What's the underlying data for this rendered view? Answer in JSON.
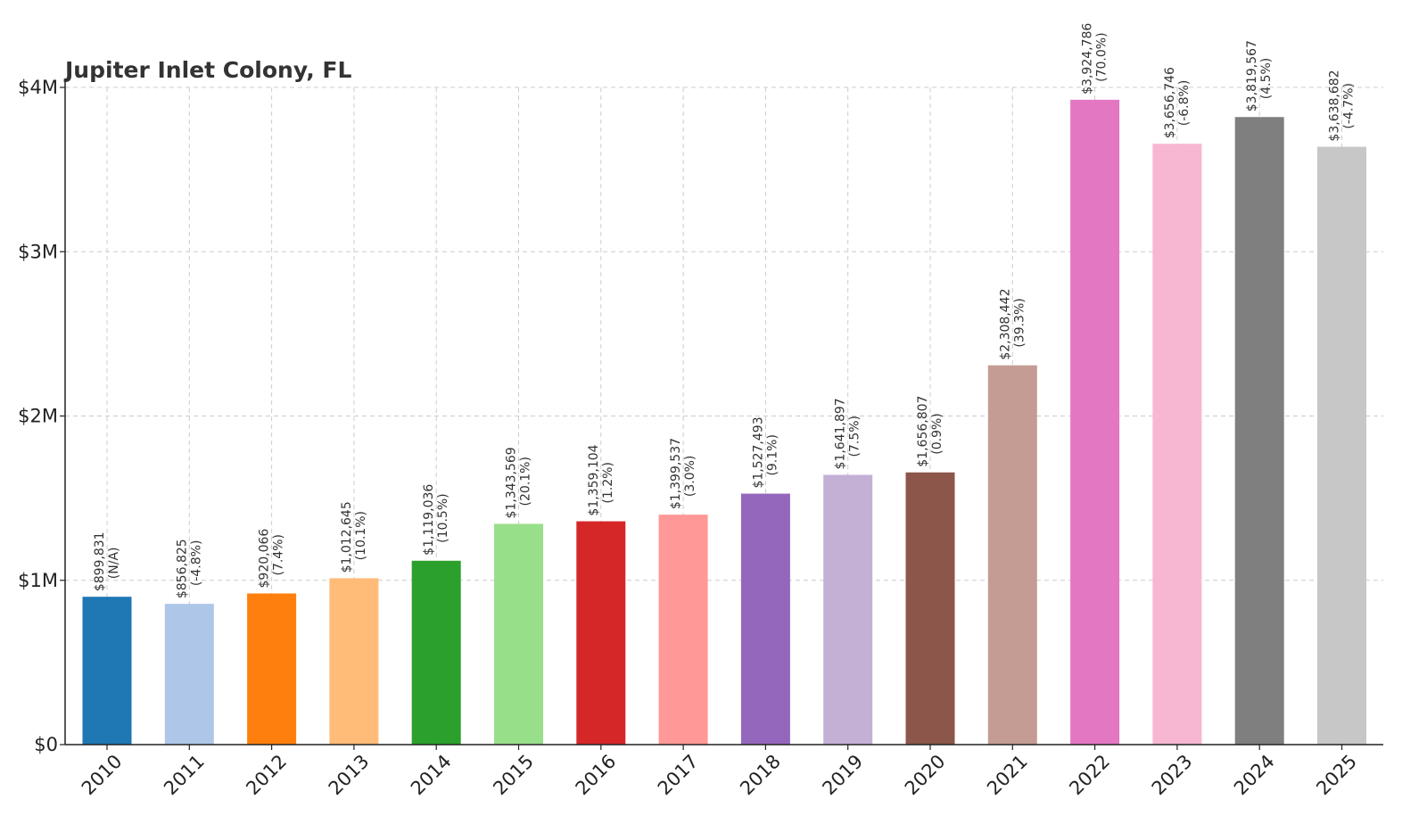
{
  "chart_data": {
    "type": "bar",
    "title": "Jupiter Inlet Colony, FL",
    "xlabel": "",
    "ylabel": "",
    "categories": [
      "2010",
      "2011",
      "2012",
      "2013",
      "2014",
      "2015",
      "2016",
      "2017",
      "2018",
      "2019",
      "2020",
      "2021",
      "2022",
      "2023",
      "2024",
      "2025"
    ],
    "values": [
      899831,
      856825,
      920066,
      1012645,
      1119036,
      1343569,
      1359104,
      1399537,
      1527493,
      1641897,
      1656807,
      2308442,
      3924786,
      3656746,
      3819567,
      3638682
    ],
    "value_labels": [
      "$899,831",
      "$856,825",
      "$920,066",
      "$1,012,645",
      "$1,119,036",
      "$1,343,569",
      "$1,359,104",
      "$1,399,537",
      "$1,527,493",
      "$1,641,897",
      "$1,656,807",
      "$2,308,442",
      "$3,924,786",
      "$3,656,746",
      "$3,819,567",
      "$3,638,682"
    ],
    "change_labels": [
      "(N/A)",
      "(-4.8%)",
      "(7.4%)",
      "(10.1%)",
      "(10.5%)",
      "(20.1%)",
      "(1.2%)",
      "(3.0%)",
      "(9.1%)",
      "(7.5%)",
      "(0.9%)",
      "(39.3%)",
      "(70.0%)",
      "(-6.8%)",
      "(4.5%)",
      "(-4.7%)"
    ],
    "colors": [
      "#1f77b4",
      "#aec7e8",
      "#ff7f0e",
      "#ffbb78",
      "#2ca02c",
      "#98df8a",
      "#d62728",
      "#ff9896",
      "#9467bd",
      "#c5b0d5",
      "#8c564b",
      "#c49c94",
      "#e377c2",
      "#f7b6d2",
      "#7f7f7f",
      "#c7c7c7"
    ],
    "ylim": [
      0,
      4000000
    ],
    "yticks": [
      0,
      1000000,
      2000000,
      3000000,
      4000000
    ],
    "ytick_labels": [
      "$0",
      "$1M",
      "$2M",
      "$3M",
      "$4M"
    ],
    "grid": true
  }
}
